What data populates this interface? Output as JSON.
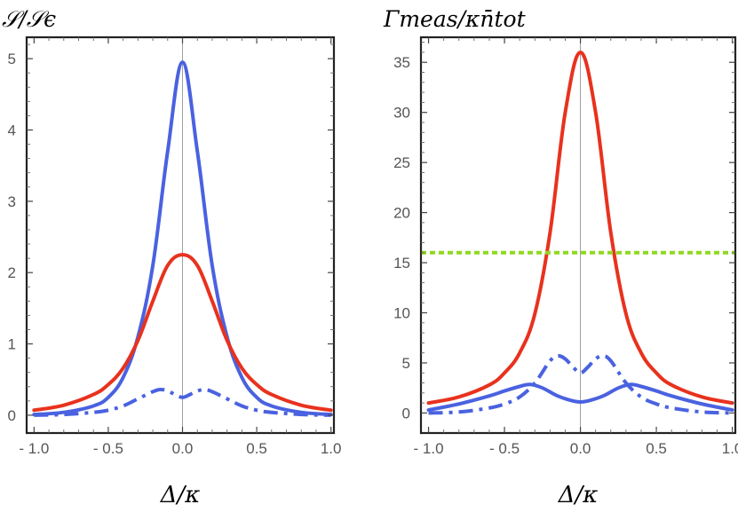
{
  "chart_data": [
    {
      "type": "line",
      "title": "𝒮/𝒮ϵ",
      "xlabel": "Δ/κ",
      "ylabel": "",
      "xlim": [
        -1.05,
        1.02
      ],
      "ylim": [
        -0.25,
        5.3
      ],
      "xticks": [
        -1.0,
        -0.5,
        0.0,
        0.5,
        1.0
      ],
      "xtick_labels": [
        "- 1.0",
        "- 0.5",
        "0.0",
        "0.5",
        "1.0"
      ],
      "yticks": [
        0,
        1,
        2,
        3,
        4,
        5
      ],
      "ytick_labels": [
        "0",
        "1",
        "2",
        "3",
        "4",
        "5"
      ],
      "series": [
        {
          "name": "blue solid",
          "color": "#4a62e0",
          "style": "solid",
          "x": [
            -1.0,
            -0.8,
            -0.6,
            -0.5,
            -0.4,
            -0.3,
            -0.2,
            -0.1,
            0.0,
            0.1,
            0.2,
            0.3,
            0.4,
            0.5,
            0.6,
            0.8,
            1.0
          ],
          "values": [
            0.01,
            0.04,
            0.13,
            0.25,
            0.53,
            1.1,
            2.1,
            3.7,
            4.95,
            3.7,
            2.1,
            1.1,
            0.53,
            0.25,
            0.13,
            0.04,
            0.01
          ]
        },
        {
          "name": "red solid",
          "color": "#e8321e",
          "style": "solid",
          "x": [
            -1.0,
            -0.8,
            -0.6,
            -0.5,
            -0.4,
            -0.3,
            -0.2,
            -0.1,
            0.0,
            0.1,
            0.2,
            0.3,
            0.4,
            0.5,
            0.6,
            0.8,
            1.0
          ],
          "values": [
            0.07,
            0.14,
            0.29,
            0.43,
            0.66,
            1.05,
            1.6,
            2.1,
            2.25,
            2.1,
            1.6,
            1.05,
            0.66,
            0.43,
            0.29,
            0.14,
            0.07
          ]
        },
        {
          "name": "blue dash-dot",
          "color": "#4a62e0",
          "style": "dashdot",
          "x": [
            -1.0,
            -0.8,
            -0.6,
            -0.5,
            -0.4,
            -0.3,
            -0.2,
            -0.15,
            -0.1,
            -0.05,
            0.0,
            0.05,
            0.1,
            0.15,
            0.2,
            0.3,
            0.4,
            0.5,
            0.6,
            0.8,
            1.0
          ],
          "values": [
            0.0,
            0.01,
            0.04,
            0.07,
            0.13,
            0.23,
            0.33,
            0.36,
            0.34,
            0.29,
            0.25,
            0.29,
            0.34,
            0.36,
            0.33,
            0.23,
            0.13,
            0.07,
            0.04,
            0.01,
            0.0
          ]
        }
      ]
    },
    {
      "type": "line",
      "title": "Γmeas/κn̄tot",
      "xlabel": "Δ/κ",
      "ylabel": "",
      "xlim": [
        -1.05,
        1.02
      ],
      "ylim": [
        -2.0,
        37.5
      ],
      "xticks": [
        -1.0,
        -0.5,
        0.0,
        0.5,
        1.0
      ],
      "xtick_labels": [
        "- 1.0",
        "- 0.5",
        "0.0",
        "0.5",
        "1.0"
      ],
      "yticks": [
        0,
        5,
        10,
        15,
        20,
        25,
        30,
        35
      ],
      "ytick_labels": [
        "0",
        "5",
        "10",
        "15",
        "20",
        "25",
        "30",
        "35"
      ],
      "series": [
        {
          "name": "red solid",
          "color": "#e8321e",
          "style": "solid",
          "x": [
            -1.0,
            -0.8,
            -0.6,
            -0.5,
            -0.4,
            -0.3,
            -0.2,
            -0.1,
            0.0,
            0.1,
            0.2,
            0.3,
            0.4,
            0.5,
            0.6,
            0.8,
            1.0
          ],
          "values": [
            1.0,
            1.6,
            2.8,
            4.0,
            6.0,
            9.9,
            18.0,
            30.0,
            36.0,
            30.0,
            18.0,
            9.9,
            6.0,
            4.0,
            2.8,
            1.6,
            1.0
          ]
        },
        {
          "name": "green dotted",
          "color": "#8fd921",
          "style": "dotted",
          "x": [
            -1.05,
            1.02
          ],
          "values": [
            16.0,
            16.0
          ]
        },
        {
          "name": "blue dash-dot",
          "color": "#4a62e0",
          "style": "dashdot",
          "x": [
            -1.0,
            -0.8,
            -0.6,
            -0.5,
            -0.4,
            -0.3,
            -0.2,
            -0.15,
            -0.1,
            -0.05,
            0.0,
            0.05,
            0.1,
            0.15,
            0.2,
            0.3,
            0.4,
            0.5,
            0.6,
            0.8,
            1.0
          ],
          "values": [
            0.0,
            0.1,
            0.5,
            0.9,
            1.6,
            3.0,
            5.2,
            5.7,
            5.4,
            4.6,
            4.0,
            4.6,
            5.4,
            5.7,
            5.2,
            3.0,
            1.6,
            0.9,
            0.5,
            0.1,
            0.0
          ]
        },
        {
          "name": "blue solid",
          "color": "#4a62e0",
          "style": "solid",
          "x": [
            -1.0,
            -0.8,
            -0.6,
            -0.5,
            -0.4,
            -0.33,
            -0.25,
            -0.15,
            -0.05,
            0.0,
            0.05,
            0.15,
            0.25,
            0.33,
            0.4,
            0.5,
            0.6,
            0.8,
            1.0
          ],
          "values": [
            0.3,
            0.9,
            1.7,
            2.2,
            2.65,
            2.85,
            2.5,
            1.7,
            1.2,
            1.1,
            1.2,
            1.7,
            2.5,
            2.85,
            2.65,
            2.2,
            1.7,
            0.9,
            0.3
          ]
        }
      ]
    }
  ]
}
